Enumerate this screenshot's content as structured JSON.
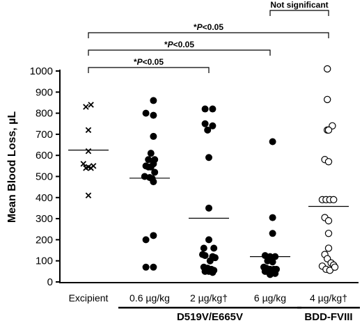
{
  "chart_data": {
    "type": "scatter",
    "ylabel": "Mean Blood Loss, µL",
    "ylim": [
      0,
      1000
    ],
    "yticks": [
      0,
      100,
      200,
      300,
      400,
      500,
      600,
      700,
      800,
      900,
      1000
    ],
    "categories": [
      "Excipient",
      "0.6 µg/kg",
      "2 µg/kg†",
      "6 µg/kg",
      "4 µg/kg†"
    ],
    "group_labels": [
      {
        "label": "D519V/E665V",
        "categories": [
          "0.6 µg/kg",
          "2 µg/kg†",
          "6 µg/kg"
        ]
      },
      {
        "label": "BDD-FVIII",
        "categories": [
          "4 µg/kg†"
        ]
      }
    ],
    "series": [
      {
        "category": "Excipient",
        "marker": "x",
        "mean": 625,
        "points": [
          [
            -0.2,
            830
          ],
          [
            0.2,
            840
          ],
          [
            0,
            720
          ],
          [
            0,
            620
          ],
          [
            -0.4,
            560
          ],
          [
            -0.2,
            540
          ],
          [
            0,
            545
          ],
          [
            0.2,
            540
          ],
          [
            0.4,
            550
          ],
          [
            0,
            410
          ]
        ]
      },
      {
        "category": "0.6 µg/kg",
        "marker": "filled-circle",
        "mean": 492,
        "points": [
          [
            0.3,
            860
          ],
          [
            -0.3,
            800
          ],
          [
            0.3,
            790
          ],
          [
            0.3,
            690
          ],
          [
            0.1,
            610
          ],
          [
            -0.1,
            580
          ],
          [
            0.4,
            580
          ],
          [
            0.3,
            560
          ],
          [
            -0.3,
            550
          ],
          [
            -0.1,
            545
          ],
          [
            0.1,
            545
          ],
          [
            0.4,
            520
          ],
          [
            -0.4,
            500
          ],
          [
            0,
            495
          ],
          [
            0.2,
            490
          ],
          [
            0.3,
            475
          ],
          [
            0.3,
            220
          ],
          [
            -0.3,
            200
          ],
          [
            -0.3,
            70
          ],
          [
            0.3,
            70
          ]
        ]
      },
      {
        "category": "2 µg/kg†",
        "marker": "filled-circle",
        "mean": 302,
        "points": [
          [
            -0.3,
            820
          ],
          [
            0.3,
            820
          ],
          [
            -0.3,
            750
          ],
          [
            0.3,
            740
          ],
          [
            -0.1,
            720
          ],
          [
            0,
            590
          ],
          [
            0,
            350
          ],
          [
            0,
            200
          ],
          [
            -0.4,
            160
          ],
          [
            0.4,
            160
          ],
          [
            -0.5,
            130
          ],
          [
            -0.3,
            125
          ],
          [
            0.3,
            120
          ],
          [
            0.5,
            115
          ],
          [
            0.1,
            100
          ],
          [
            -0.4,
            70
          ],
          [
            -0.1,
            65
          ],
          [
            0.2,
            60
          ],
          [
            0.4,
            55
          ],
          [
            -0.3,
            50
          ],
          [
            0,
            50
          ],
          [
            0.3,
            45
          ]
        ]
      },
      {
        "category": "6 µg/kg",
        "marker": "filled-circle",
        "mean": 120,
        "points": [
          [
            0.2,
            665
          ],
          [
            0.2,
            305
          ],
          [
            0.2,
            230
          ],
          [
            -0.4,
            125
          ],
          [
            0,
            120
          ],
          [
            0.4,
            120
          ],
          [
            -0.2,
            100
          ],
          [
            0.2,
            95
          ],
          [
            -0.5,
            70
          ],
          [
            -0.3,
            65
          ],
          [
            0,
            60
          ],
          [
            0.3,
            60
          ],
          [
            0.5,
            60
          ],
          [
            -0.4,
            50
          ],
          [
            -0.1,
            45
          ],
          [
            0.2,
            45
          ],
          [
            0.4,
            40
          ],
          [
            0,
            35
          ]
        ]
      },
      {
        "category": "4 µg/kg†",
        "marker": "open-circle",
        "mean": 358,
        "points": [
          [
            -0.1,
            1010
          ],
          [
            -0.1,
            865
          ],
          [
            -0.1,
            720
          ],
          [
            0.3,
            740
          ],
          [
            0,
            720
          ],
          [
            -0.3,
            580
          ],
          [
            0,
            570
          ],
          [
            -0.5,
            390
          ],
          [
            -0.2,
            390
          ],
          [
            0.1,
            390
          ],
          [
            0.4,
            390
          ],
          [
            -0.3,
            305
          ],
          [
            0,
            290
          ],
          [
            0,
            230
          ],
          [
            0,
            160
          ],
          [
            -0.3,
            130
          ],
          [
            -0.1,
            110
          ],
          [
            0.2,
            90
          ],
          [
            0.4,
            80
          ],
          [
            -0.5,
            75
          ],
          [
            -0.2,
            60
          ],
          [
            0.1,
            55
          ],
          [
            0.5,
            70
          ]
        ]
      }
    ],
    "annotations": [
      {
        "from": "Excipient",
        "to": "2 µg/kg†",
        "prefix": "*",
        "italic": "P",
        "suffix": "<0.05"
      },
      {
        "from": "Excipient",
        "to": "6 µg/kg",
        "prefix": "*",
        "italic": "P",
        "suffix": "<0.05"
      },
      {
        "from": "Excipient",
        "to": "4 µg/kg†",
        "prefix": "*",
        "italic": "P",
        "suffix": "<0.05"
      },
      {
        "from": "6 µg/kg",
        "to": "4 µg/kg†",
        "text": "Not significant"
      }
    ]
  }
}
